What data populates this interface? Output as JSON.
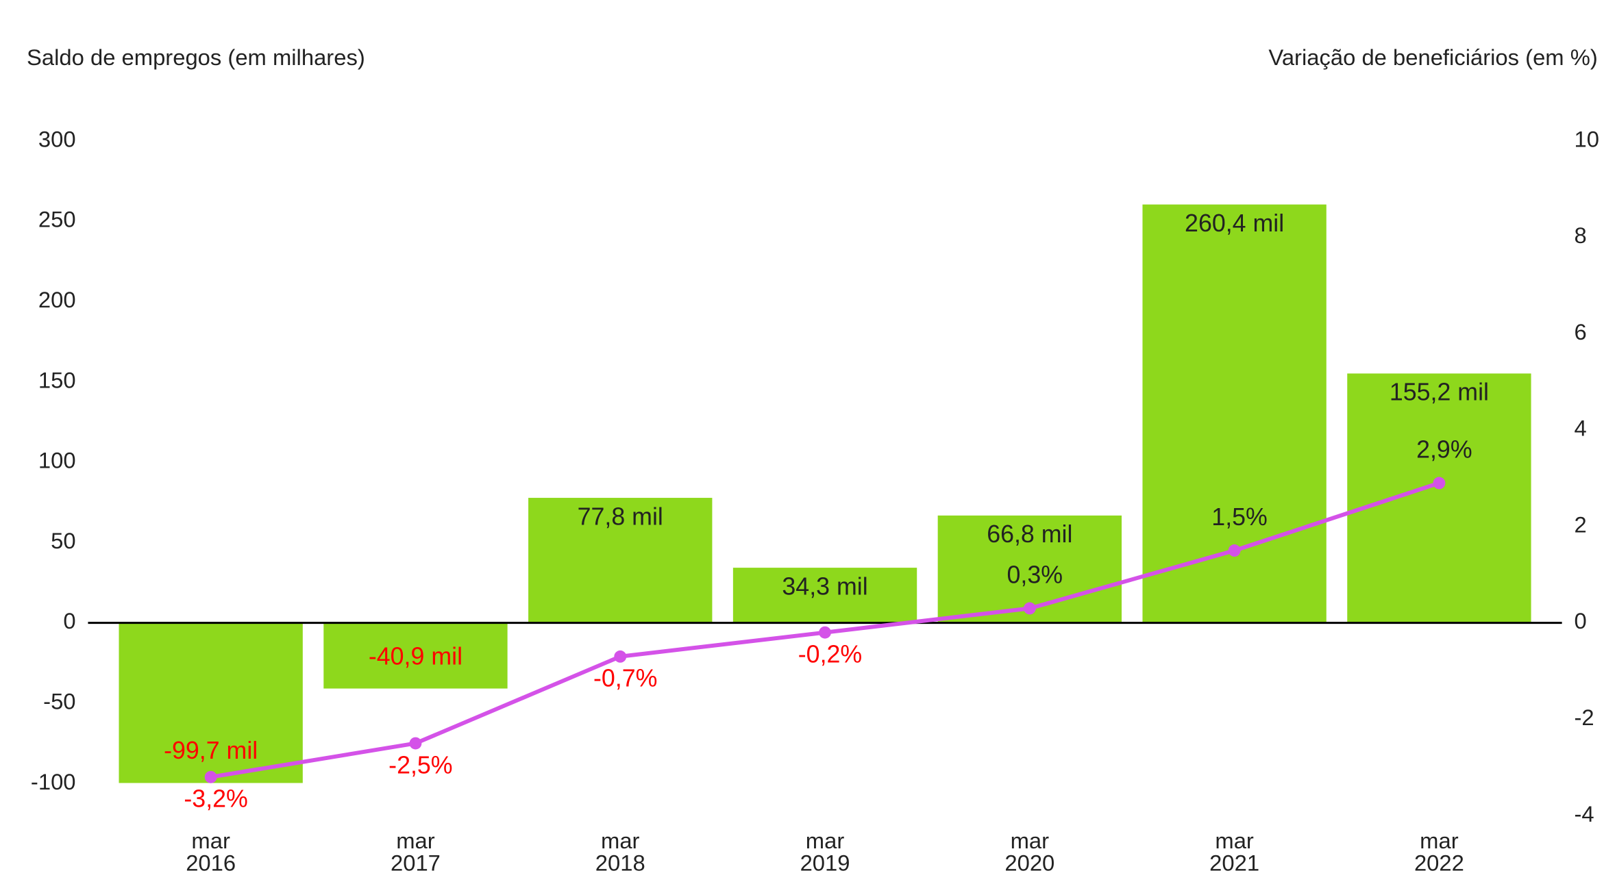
{
  "chart_data": {
    "type": "bar",
    "ylabel": "Saldo de empregos (em milhares)",
    "y2label": "Variação de beneficiários (em %)",
    "categories": [
      "mar 2016",
      "mar 2017",
      "mar 2018",
      "mar 2019",
      "mar 2020",
      "mar 2021",
      "mar 2022"
    ],
    "series": [
      {
        "name": "Saldo de empregos",
        "type": "bar",
        "color": "#8ed81c",
        "values": [
          -99.7,
          -40.9,
          77.8,
          34.3,
          66.8,
          260.4,
          155.2
        ],
        "value_labels": [
          "-99,7 mil",
          "-40,9 mil",
          "77,8 mil",
          "34,3 mil",
          "66,8 mil",
          "260,4 mil",
          "155,2 mil"
        ]
      },
      {
        "name": "Variação de beneficiários",
        "type": "line",
        "axis": "y2",
        "color": "#d452e8",
        "values": [
          -3.2,
          -2.5,
          -0.7,
          -0.2,
          0.3,
          1.5,
          2.9
        ],
        "value_labels": [
          "-3,2%",
          "-2,5%",
          "-0,7%",
          "-0,2%",
          "0,3%",
          "1,5%",
          "2,9%"
        ]
      }
    ],
    "ylim": [
      -120,
      300
    ],
    "yticks": [
      300,
      250,
      200,
      150,
      100,
      50,
      0,
      -50,
      -100
    ],
    "y2lim": [
      -4,
      10
    ],
    "y2ticks": [
      10,
      8,
      6,
      4,
      2,
      0,
      -2,
      -4
    ],
    "negative_label_color": "#ff0000"
  }
}
